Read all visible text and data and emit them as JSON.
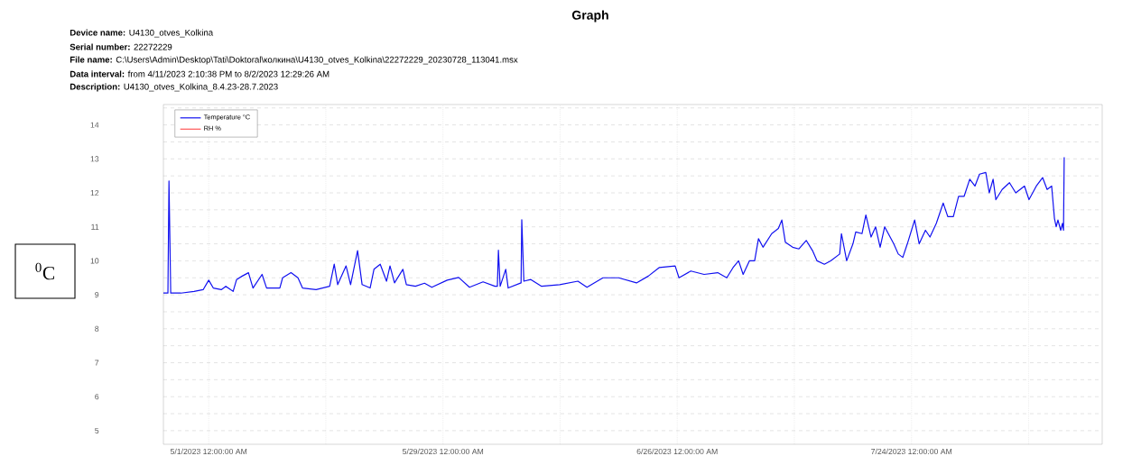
{
  "chart_data": {
    "type": "line",
    "title": "Graph",
    "annotations": [
      "**Device name:** U4130_otves_Kolkina",
      "**Serial number:** 22272229",
      "**File name:** C:\\Users\\Admin\\Desktop\\Tati\\Doktoral\\колкина\\U4130_otves_Kolkina\\22272229_20230728_113041.msx",
      "**Data interval:** from 4/11/2023 2:10:38 PM to 8/2/2023 12:29:26 AM",
      "**Description:** U4130_otves_Kolkina_8.4.23-28.7.2023"
    ],
    "ylabel": "$^{0}$C",
    "xlim": [
      "2023-04-25T14:00",
      "2023-08-15T19:00"
    ],
    "xticks": [
      {
        "value": "2023-05-01",
        "label": "5/1/2023 12:00:00 AM"
      },
      {
        "value": "2023-05-15",
        "label": null
      },
      {
        "value": "2023-05-29",
        "label": "5/29/2023 12:00:00 AM"
      },
      {
        "value": "2023-06-12",
        "label": null
      },
      {
        "value": "2023-06-26",
        "label": "6/26/2023 12:00:00 AM"
      },
      {
        "value": "2023-07-10",
        "label": null
      },
      {
        "value": "2023-07-24",
        "label": "7/24/2023 12:00:00 AM"
      },
      {
        "value": "2023-08-07",
        "label": null
      }
    ],
    "ylim": [
      4.6,
      14.6
    ],
    "yticks": [
      5,
      {
        "value": 5.5,
        "label": null
      },
      6,
      {
        "value": 6.5,
        "label": null
      },
      7,
      {
        "value": 7.5,
        "label": null
      },
      8,
      {
        "value": 8.5,
        "label": null
      },
      9,
      {
        "value": 9.5,
        "label": null
      },
      10,
      {
        "value": 10.5,
        "label": null
      },
      11,
      {
        "value": 11.5,
        "label": null
      },
      12,
      {
        "value": 12.5,
        "label": null
      },
      13,
      {
        "value": 13.5,
        "label": null
      },
      14,
      {
        "value": 14.5,
        "label": null
      }
    ],
    "grid": true,
    "legend": "top left",
    "series": [
      {
        "name": "Temperature °C",
        "color": "#1010f0",
        "x": [
          "2023-04-25T14:00",
          "2023-04-26T03:00",
          "2023-04-26T06:00",
          "2023-04-26T11:00",
          "2023-04-27T16:00",
          "2023-04-29T06:00",
          "2023-04-30T08:00",
          "2023-05-01T00:00",
          "2023-05-01T13:00",
          "2023-05-02T12:00",
          "2023-05-03T01:00",
          "2023-05-03T22:00",
          "2023-05-04T08:00",
          "2023-05-05T00:00",
          "2023-05-05T18:00",
          "2023-05-06T07:00",
          "2023-05-07T09:00",
          "2023-05-07T22:00",
          "2023-05-09T12:00",
          "2023-05-09T20:00",
          "2023-05-10T20:00",
          "2023-05-11T16:00",
          "2023-05-12T05:00",
          "2023-05-13T20:00",
          "2023-05-15T11:00",
          "2023-05-16T00:00",
          "2023-05-16T10:00",
          "2023-05-17T10:00",
          "2023-05-17T23:00",
          "2023-05-18T19:00",
          "2023-05-19T08:00",
          "2023-05-20T07:00",
          "2023-05-20T18:00",
          "2023-05-21T12:00",
          "2023-05-22T06:00",
          "2023-05-22T16:00",
          "2023-05-23T05:00",
          "2023-05-24T05:00",
          "2023-05-24T15:00",
          "2023-05-25T17:00",
          "2023-05-26T19:00",
          "2023-05-27T16:00",
          "2023-05-29T12:00",
          "2023-05-30T21:00",
          "2023-06-01T04:00",
          "2023-06-02T19:00",
          "2023-06-04T05:00",
          "2023-06-04T12:00",
          "2023-06-04T15:00",
          "2023-06-04T20:00",
          "2023-06-05T12:00",
          "2023-06-05T19:00",
          "2023-06-07T08:00",
          "2023-06-07T10:00",
          "2023-06-07T16:00",
          "2023-06-08T12:00",
          "2023-06-09T19:00",
          "2023-06-11T23:00",
          "2023-06-14T03:00",
          "2023-06-15T05:00",
          "2023-06-17T03:00",
          "2023-06-19T00:00",
          "2023-06-21T03:00",
          "2023-06-22T13:00",
          "2023-06-23T20:00",
          "2023-06-25T18:00",
          "2023-06-26T05:00",
          "2023-06-27T15:00",
          "2023-06-29T05:00",
          "2023-06-30T20:00",
          "2023-07-01T22:00",
          "2023-07-02T16:00",
          "2023-07-03T08:00",
          "2023-07-03T21:00",
          "2023-07-04T15:00",
          "2023-07-05T06:00",
          "2023-07-05T17:00",
          "2023-07-06T06:00",
          "2023-07-07T07:00",
          "2023-07-08T02:00",
          "2023-07-08T12:00",
          "2023-07-08T22:00",
          "2023-07-09T19:00",
          "2023-07-10T13:00",
          "2023-07-11T10:00",
          "2023-07-12T04:00",
          "2023-07-12T17:00",
          "2023-07-13T14:00",
          "2023-07-14T08:00",
          "2023-07-15T10:00",
          "2023-07-15T15:00",
          "2023-07-16T06:00",
          "2023-07-17T00:00",
          "2023-07-17T08:00",
          "2023-07-18T02:00",
          "2023-07-18T13:00",
          "2023-07-19T04:00",
          "2023-07-19T17:00",
          "2023-07-20T06:00",
          "2023-07-20T19:00",
          "2023-07-21T21:00",
          "2023-07-22T10:00",
          "2023-07-22T23:00",
          "2023-07-23T12:00",
          "2023-07-24T09:00",
          "2023-07-24T22:00",
          "2023-07-25T16:00",
          "2023-07-26T05:00",
          "2023-07-26T23:00",
          "2023-07-27T19:00",
          "2023-07-28T08:00",
          "2023-07-29T00:00",
          "2023-07-29T15:00",
          "2023-07-30T07:00",
          "2023-07-30T23:00",
          "2023-07-31T14:00",
          "2023-08-01T03:00",
          "2023-08-01T21:00",
          "2023-08-02T07:00",
          "2023-08-02T18:00",
          "2023-08-03T02:00",
          "2023-08-03T20:00",
          "2023-08-04T17:00",
          "2023-08-05T11:00",
          "2023-08-06T12:00",
          "2023-08-07T01:00",
          "2023-08-07T22:00",
          "2023-08-08T16:00",
          "2023-08-09T05:00",
          "2023-08-09T18:00",
          "2023-08-10T02:00",
          "2023-08-10T07:00",
          "2023-08-10T12:00",
          "2023-08-10T20:00",
          "2023-08-11T01:00",
          "2023-08-11T04:00",
          "2023-08-11T06:00"
        ],
        "values": [
          9.05,
          9.05,
          12.35,
          9.05,
          9.05,
          9.1,
          9.15,
          9.43,
          9.2,
          9.15,
          9.25,
          9.1,
          9.45,
          9.55,
          9.65,
          9.2,
          9.6,
          9.2,
          9.2,
          9.5,
          9.65,
          9.5,
          9.2,
          9.15,
          9.25,
          9.9,
          9.3,
          9.85,
          9.3,
          10.3,
          9.3,
          9.2,
          9.75,
          9.9,
          9.4,
          9.85,
          9.35,
          9.75,
          9.3,
          9.25,
          9.34,
          9.22,
          9.43,
          9.51,
          9.22,
          9.38,
          9.25,
          9.25,
          10.31,
          9.25,
          9.75,
          9.2,
          9.35,
          11.21,
          9.4,
          9.45,
          9.25,
          9.3,
          9.4,
          9.22,
          9.5,
          9.5,
          9.35,
          9.55,
          9.8,
          9.85,
          9.5,
          9.7,
          9.6,
          9.65,
          9.5,
          9.8,
          10.0,
          9.6,
          10.0,
          10.0,
          10.65,
          10.4,
          10.8,
          10.95,
          11.2,
          10.55,
          10.4,
          10.35,
          10.6,
          10.3,
          10.0,
          9.9,
          10.0,
          10.2,
          10.8,
          10.0,
          10.5,
          10.85,
          10.8,
          11.35,
          10.7,
          11.0,
          10.4,
          11.0,
          10.5,
          10.2,
          10.1,
          10.5,
          11.2,
          10.5,
          10.9,
          10.7,
          11.1,
          11.7,
          11.3,
          11.3,
          11.9,
          11.9,
          12.4,
          12.2,
          12.55,
          12.6,
          12.0,
          12.4,
          11.8,
          12.1,
          12.3,
          12.0,
          12.2,
          11.8,
          12.2,
          12.45,
          12.1,
          12.2,
          11.25,
          11.0,
          11.2,
          10.9,
          11.1,
          10.9,
          13.05
        ]
      },
      {
        "name": "RH %",
        "color": "#ff0000"
      }
    ]
  }
}
